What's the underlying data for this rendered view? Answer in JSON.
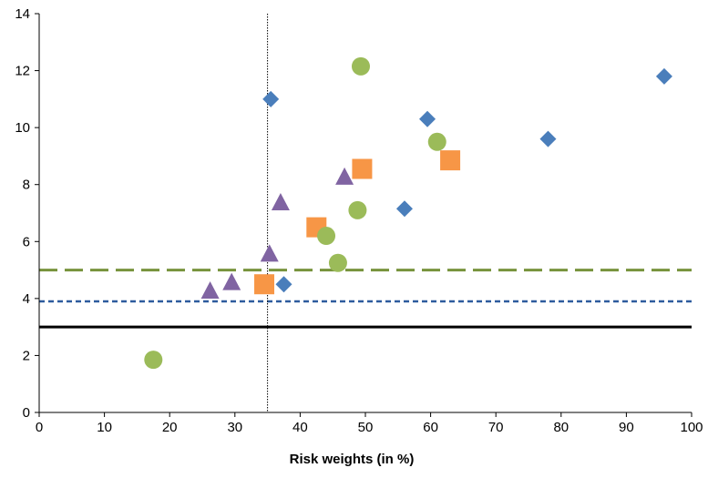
{
  "chart_data": {
    "type": "scatter",
    "title": "",
    "xlabel": "Risk weights (in %)",
    "ylabel": "",
    "xlim": [
      0,
      100
    ],
    "ylim": [
      0,
      14
    ],
    "x_ticks": [
      0,
      10,
      20,
      30,
      40,
      50,
      60,
      70,
      80,
      90,
      100
    ],
    "y_ticks": [
      0,
      2,
      4,
      6,
      8,
      10,
      12,
      14
    ],
    "grid": false,
    "legend": "none",
    "series": [
      {
        "marker": "diamond",
        "color": "#4A7EBB",
        "points": [
          [
            35.5,
            11.0
          ],
          [
            37.5,
            4.5
          ],
          [
            56.0,
            7.15
          ],
          [
            59.5,
            10.3
          ],
          [
            78.0,
            9.6
          ],
          [
            95.8,
            11.8
          ]
        ]
      },
      {
        "marker": "square",
        "color": "#F79646",
        "points": [
          [
            34.5,
            4.5
          ],
          [
            42.5,
            6.5
          ],
          [
            49.5,
            8.55
          ],
          [
            63.0,
            8.85
          ]
        ]
      },
      {
        "marker": "circle",
        "color": "#9BBB59",
        "points": [
          [
            17.5,
            1.85
          ],
          [
            44.0,
            6.2
          ],
          [
            45.8,
            5.25
          ],
          [
            48.8,
            7.1
          ],
          [
            49.3,
            12.15
          ],
          [
            61.0,
            9.5
          ]
        ]
      },
      {
        "marker": "triangle",
        "color": "#8064A2",
        "points": [
          [
            26.2,
            4.25
          ],
          [
            29.5,
            4.55
          ],
          [
            35.3,
            5.55
          ],
          [
            37.0,
            7.35
          ],
          [
            46.8,
            8.25
          ]
        ]
      }
    ],
    "reference_lines": [
      {
        "orientation": "horizontal",
        "value": 5.0,
        "style": "long-dash",
        "color": "#77933C",
        "width": 3
      },
      {
        "orientation": "horizontal",
        "value": 3.9,
        "style": "short-dash",
        "color": "#2E5C9E",
        "width": 2.5
      },
      {
        "orientation": "horizontal",
        "value": 3.0,
        "style": "solid",
        "color": "#000000",
        "width": 3
      },
      {
        "orientation": "vertical",
        "value": 35.0,
        "style": "dotted",
        "color": "#000000",
        "width": 1
      }
    ]
  }
}
